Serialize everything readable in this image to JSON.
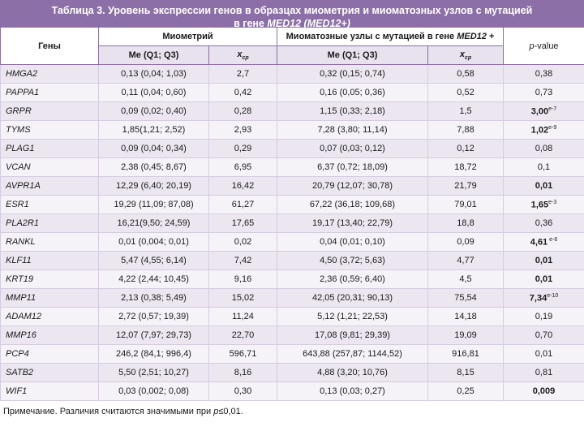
{
  "title": {
    "line1": "Таблица 3. Уровень экспрессии генов в образцах миометрия и миоматозных узлов с мутацией",
    "line2_prefix": "в гене ",
    "line2_italic": "MED12 (MED12+)"
  },
  "header": {
    "genes": "Гены",
    "myometrium": "Миометрий",
    "nodes_prefix": "Миоматозные узлы с мутацией в гене ",
    "nodes_gene": "MED12",
    "nodes_suffix": " +",
    "p_value_p": "p",
    "p_value_rest": "-value",
    "me_q": "Me (Q1; Q3)",
    "x_main": "x",
    "x_sub": "ср"
  },
  "rows": [
    {
      "gene": "HMGA2",
      "m_me": "0,13 (0,04; 1,03)",
      "m_x": "2,7",
      "n_me": "0,32 (0,15; 0,74)",
      "n_x": "0,58",
      "p": "0,38",
      "p_sup": "",
      "bold": false
    },
    {
      "gene": "PAPPA1",
      "m_me": "0,11 (0,04; 0,60)",
      "m_x": "0,42",
      "n_me": "0,16 (0,05; 0,36)",
      "n_x": "0,52",
      "p": "0,73",
      "p_sup": "",
      "bold": false
    },
    {
      "gene": "GRPR",
      "m_me": "0,09 (0,02; 0,40)",
      "m_x": "0,28",
      "n_me": "1,15 (0,33; 2,18)",
      "n_x": "1,5",
      "p": "3,00",
      "p_sup": "e-7",
      "bold": true
    },
    {
      "gene": "TYMS",
      "m_me": "1,85(1,21; 2,52)",
      "m_x": "2,93",
      "n_me": "7,28 (3,80; 11,14)",
      "n_x": "7,88",
      "p": "1,02",
      "p_sup": "e-9",
      "bold": true
    },
    {
      "gene": "PLAG1",
      "m_me": "0,09 (0,04; 0,34)",
      "m_x": "0,29",
      "n_me": "0,07 (0,03; 0,12)",
      "n_x": "0,12",
      "p": "0,08",
      "p_sup": "",
      "bold": false
    },
    {
      "gene": "VCAN",
      "m_me": "2,38 (0,45; 8,67)",
      "m_x": "6,95",
      "n_me": "6,37 (0,72; 18,09)",
      "n_x": "18,72",
      "p": "0,1",
      "p_sup": "",
      "bold": false
    },
    {
      "gene": "AVPR1A",
      "m_me": "12,29 (6,40; 20,19)",
      "m_x": "16,42",
      "n_me": "20,79 (12,07; 30,78)",
      "n_x": "21,79",
      "p": "0,01",
      "p_sup": "",
      "bold": true
    },
    {
      "gene": "ESR1",
      "m_me": "19,29 (11,09; 87,08)",
      "m_x": "61,27",
      "n_me": "67,22 (36,18; 109,68)",
      "n_x": "79,01",
      "p": "1,65",
      "p_sup": "e-3",
      "bold": true
    },
    {
      "gene": "PLA2R1",
      "m_me": "16,21(9,50; 24,59)",
      "m_x": "17,65",
      "n_me": "19,17 (13,40; 22,79)",
      "n_x": "18,8",
      "p": "0,36",
      "p_sup": "",
      "bold": false
    },
    {
      "gene": "RANKL",
      "m_me": "0,01 (0,004; 0,01)",
      "m_x": "0,02",
      "n_me": "0,04 (0,01; 0,10)",
      "n_x": "0,09",
      "p": "4,61",
      "p_sup": " e-6",
      "bold": true
    },
    {
      "gene": "KLF11",
      "m_me": "5,47 (4,55; 6,14)",
      "m_x": "7,42",
      "n_me": "4,50 (3,72; 5,63)",
      "n_x": "4,77",
      "p": "0,01",
      "p_sup": "",
      "bold": true
    },
    {
      "gene": "KRT19",
      "m_me": "4,22 (2,44; 10,45)",
      "m_x": "9,16",
      "n_me": "2,36 (0,59; 6,40)",
      "n_x": "4,5",
      "p": "0,01",
      "p_sup": "",
      "bold": true
    },
    {
      "gene": "MMP11",
      "m_me": "2,13 (0,38; 5,49)",
      "m_x": "15,02",
      "n_me": "42,05 (20,31; 90,13)",
      "n_x": "75,54",
      "p": "7,34",
      "p_sup": "e-10",
      "bold": true
    },
    {
      "gene": "ADAM12",
      "m_me": "2,72 (0,57; 19,39)",
      "m_x": "11,24",
      "n_me": "5,12 (1,21; 22,53)",
      "n_x": "14,18",
      "p": "0,19",
      "p_sup": "",
      "bold": false
    },
    {
      "gene": "MMP16",
      "m_me": "12,07 (7,97; 29,73)",
      "m_x": "22,70",
      "n_me": "17,08 (9,81; 29,39)",
      "n_x": "19,09",
      "p": "0,70",
      "p_sup": "",
      "bold": false
    },
    {
      "gene": "PCP4",
      "m_me": "246,2 (84,1; 996,4)",
      "m_x": "596,71",
      "n_me": "643,88 (257,87; 1144,52)",
      "n_x": "916,81",
      "p": "0,01",
      "p_sup": "",
      "bold": false
    },
    {
      "gene": "SATB2",
      "m_me": "5,50 (2,51; 10,27)",
      "m_x": "8,16",
      "n_me": "4,88 (3,20; 10,76)",
      "n_x": "8,15",
      "p": "0,81",
      "p_sup": "",
      "bold": false
    },
    {
      "gene": "WIF1",
      "m_me": "0,03 (0,002; 0,08)",
      "m_x": "0,30",
      "n_me": "0,13 (0,03; 0,27)",
      "n_x": "0,25",
      "p": "0,009",
      "p_sup": "",
      "bold": true
    }
  ],
  "note": {
    "prefix": "Примечание. Различия считаются значимыми при ",
    "p": "p",
    "suffix": "≤0,01."
  }
}
